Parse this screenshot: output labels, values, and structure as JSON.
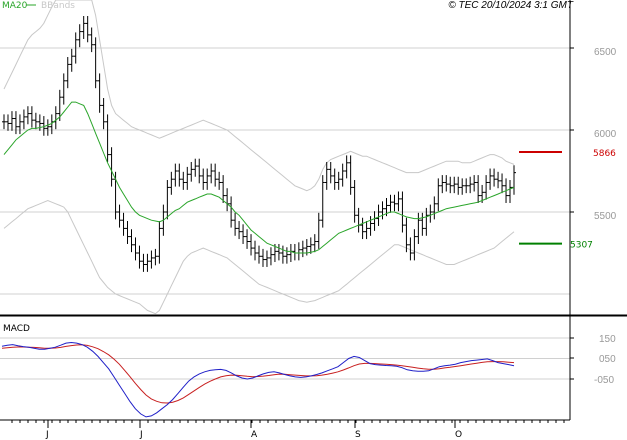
{
  "copyright": "© TEC 20/10/2024 3:1 GMT",
  "colors": {
    "ma20": "#2aa52a",
    "bbands": "#c8c8c8",
    "price": "#000000",
    "macd": "#2020c8",
    "signal": "#c82020",
    "resistance": "#cc0000",
    "support": "#008000",
    "grid": "#d0d0d0",
    "frame": "#000000",
    "tick_text": "#999999"
  },
  "chart_data": [
    {
      "type": "line",
      "panel": "price",
      "legend": [
        "MA20",
        "BBands"
      ],
      "legend_placement": "top-left",
      "ylim": [
        5000,
        6700
      ],
      "y_ticks": [
        "6500",
        "6000",
        "5500"
      ],
      "x_ticks": [
        "J",
        "J",
        "A",
        "S",
        "O"
      ],
      "grid": true,
      "levels": [
        {
          "label": "5866",
          "value": 5866,
          "color": "#cc0000"
        },
        {
          "label": "5307",
          "value": 5307,
          "color": "#008000"
        }
      ],
      "close": [
        6050,
        6040,
        6070,
        6020,
        6050,
        6080,
        6100,
        6060,
        6050,
        6040,
        6010,
        6020,
        6050,
        6100,
        6200,
        6300,
        6400,
        6450,
        6550,
        6600,
        6650,
        6580,
        6520,
        6300,
        6150,
        6050,
        5850,
        5700,
        5500,
        5450,
        5400,
        5350,
        5300,
        5250,
        5200,
        5180,
        5200,
        5220,
        5230,
        5400,
        5500,
        5650,
        5700,
        5750,
        5700,
        5680,
        5730,
        5760,
        5780,
        5720,
        5680,
        5720,
        5750,
        5700,
        5680,
        5600,
        5550,
        5450,
        5400,
        5380,
        5350,
        5320,
        5280,
        5250,
        5230,
        5210,
        5220,
        5240,
        5260,
        5250,
        5230,
        5240,
        5260,
        5250,
        5270,
        5280,
        5290,
        5300,
        5320,
        5450,
        5680,
        5760,
        5720,
        5680,
        5700,
        5750,
        5800,
        5650,
        5480,
        5420,
        5380,
        5400,
        5430,
        5460,
        5500,
        5520,
        5540,
        5560,
        5550,
        5580,
        5420,
        5300,
        5250,
        5350,
        5450,
        5400,
        5480,
        5500,
        5550,
        5660,
        5680,
        5670,
        5660,
        5670,
        5650,
        5660,
        5660,
        5670,
        5680,
        5600,
        5620,
        5680,
        5720,
        5700,
        5690,
        5660,
        5600,
        5650,
        5740
      ],
      "ma20": [
        5850,
        5880,
        5910,
        5940,
        5960,
        5980,
        6000,
        6010,
        6010,
        6015,
        6020,
        6030,
        6040,
        6060,
        6080,
        6110,
        6140,
        6170,
        6170,
        6160,
        6150,
        6100,
        6040,
        5980,
        5920,
        5860,
        5800,
        5750,
        5700,
        5650,
        5610,
        5570,
        5530,
        5500,
        5480,
        5470,
        5460,
        5450,
        5445,
        5440,
        5450,
        5470,
        5490,
        5510,
        5520,
        5540,
        5560,
        5570,
        5580,
        5590,
        5600,
        5610,
        5610,
        5600,
        5590,
        5570,
        5550,
        5530,
        5500,
        5480,
        5450,
        5420,
        5390,
        5370,
        5350,
        5330,
        5310,
        5300,
        5290,
        5280,
        5270,
        5260,
        5260,
        5250,
        5250,
        5250,
        5250,
        5255,
        5260,
        5270,
        5290,
        5310,
        5330,
        5350,
        5370,
        5380,
        5390,
        5400,
        5410,
        5420,
        5430,
        5440,
        5450,
        5460,
        5470,
        5480,
        5490,
        5500,
        5500,
        5490,
        5480,
        5470,
        5465,
        5460,
        5460,
        5465,
        5470,
        5480,
        5490,
        5500,
        5510,
        5520,
        5525,
        5530,
        5535,
        5540,
        5545,
        5550,
        5555,
        5560,
        5570,
        5580,
        5590,
        5600,
        5610,
        5620,
        5630,
        5640,
        5650
      ],
      "bb_upper": [
        6250,
        6300,
        6350,
        6400,
        6450,
        6500,
        6550,
        6580,
        6600,
        6620,
        6650,
        6700,
        6750,
        6800,
        6850,
        6900,
        6950,
        7000,
        7020,
        7020,
        7000,
        6950,
        6850,
        6700,
        6550,
        6400,
        6250,
        6150,
        6100,
        6080,
        6060,
        6040,
        6020,
        6010,
        6000,
        5990,
        5980,
        5970,
        5960,
        5950,
        5960,
        5970,
        5980,
        5990,
        6000,
        6010,
        6020,
        6030,
        6040,
        6050,
        6060,
        6050,
        6040,
        6030,
        6020,
        6010,
        6000,
        5980,
        5960,
        5940,
        5920,
        5900,
        5880,
        5860,
        5840,
        5820,
        5800,
        5780,
        5760,
        5740,
        5720,
        5700,
        5680,
        5660,
        5650,
        5640,
        5630,
        5640,
        5660,
        5700,
        5760,
        5800,
        5820,
        5830,
        5840,
        5850,
        5860,
        5870,
        5860,
        5850,
        5840,
        5840,
        5830,
        5820,
        5810,
        5800,
        5790,
        5780,
        5770,
        5760,
        5750,
        5740,
        5740,
        5740,
        5740,
        5750,
        5760,
        5770,
        5780,
        5790,
        5800,
        5810,
        5810,
        5810,
        5810,
        5800,
        5800,
        5800,
        5810,
        5820,
        5830,
        5840,
        5850,
        5850,
        5840,
        5830,
        5810,
        5800,
        5790
      ],
      "bb_lower": [
        5400,
        5420,
        5440,
        5460,
        5480,
        5500,
        5520,
        5530,
        5540,
        5550,
        5560,
        5570,
        5560,
        5550,
        5540,
        5530,
        5500,
        5450,
        5400,
        5350,
        5300,
        5250,
        5200,
        5150,
        5100,
        5070,
        5040,
        5020,
        5000,
        4990,
        4980,
        4970,
        4960,
        4950,
        4940,
        4920,
        4900,
        4890,
        4880,
        4900,
        4950,
        5000,
        5050,
        5100,
        5150,
        5200,
        5230,
        5250,
        5260,
        5270,
        5280,
        5270,
        5260,
        5250,
        5240,
        5230,
        5220,
        5200,
        5180,
        5160,
        5140,
        5120,
        5100,
        5080,
        5060,
        5050,
        5040,
        5030,
        5020,
        5010,
        5000,
        4990,
        4980,
        4970,
        4960,
        4955,
        4950,
        4955,
        4960,
        4970,
        4980,
        4990,
        5000,
        5010,
        5020,
        5040,
        5060,
        5080,
        5100,
        5120,
        5140,
        5160,
        5180,
        5200,
        5220,
        5240,
        5260,
        5280,
        5300,
        5300,
        5290,
        5280,
        5270,
        5260,
        5250,
        5240,
        5230,
        5220,
        5210,
        5200,
        5190,
        5180,
        5180,
        5180,
        5190,
        5200,
        5210,
        5220,
        5230,
        5240,
        5250,
        5260,
        5270,
        5280,
        5300,
        5320,
        5340,
        5360,
        5380
      ]
    },
    {
      "type": "line",
      "panel": "macd",
      "title": "MACD",
      "ylim": [
        -260,
        220
      ],
      "y_ticks": [
        "150",
        "050",
        "-050"
      ],
      "grid": true,
      "macd": [
        110,
        115,
        118,
        112,
        108,
        105,
        100,
        95,
        95,
        100,
        105,
        115,
        125,
        128,
        125,
        118,
        105,
        85,
        60,
        30,
        0,
        -40,
        -80,
        -120,
        -160,
        -195,
        -220,
        -235,
        -230,
        -215,
        -195,
        -175,
        -150,
        -120,
        -90,
        -60,
        -40,
        -25,
        -15,
        -8,
        -5,
        -3,
        -8,
        -20,
        -35,
        -45,
        -50,
        -45,
        -35,
        -25,
        -18,
        -15,
        -20,
        -28,
        -35,
        -40,
        -42,
        -40,
        -35,
        -28,
        -20,
        -10,
        0,
        10,
        30,
        50,
        60,
        55,
        40,
        25,
        20,
        18,
        16,
        15,
        12,
        5,
        -5,
        -10,
        -12,
        -12,
        -10,
        0,
        10,
        15,
        18,
        22,
        30,
        35,
        40,
        42,
        45,
        48,
        40,
        30,
        25,
        20,
        15
      ],
      "signal": [
        100,
        102,
        105,
        106,
        106,
        105,
        104,
        102,
        100,
        100,
        101,
        104,
        109,
        113,
        116,
        117,
        114,
        107,
        98,
        84,
        68,
        47,
        22,
        -8,
        -39,
        -71,
        -101,
        -128,
        -147,
        -159,
        -166,
        -167,
        -163,
        -155,
        -142,
        -125,
        -108,
        -91,
        -75,
        -61,
        -50,
        -40,
        -34,
        -31,
        -32,
        -34,
        -37,
        -39,
        -38,
        -36,
        -33,
        -29,
        -26,
        -27,
        -29,
        -31,
        -33,
        -35,
        -35,
        -34,
        -31,
        -27,
        -21,
        -15,
        -6,
        4,
        15,
        23,
        26,
        26,
        25,
        23,
        22,
        20,
        18,
        15,
        11,
        7,
        3,
        0,
        -2,
        -2,
        0,
        4,
        7,
        11,
        15,
        19,
        23,
        27,
        31,
        34,
        35,
        35,
        34,
        32,
        30
      ]
    }
  ]
}
